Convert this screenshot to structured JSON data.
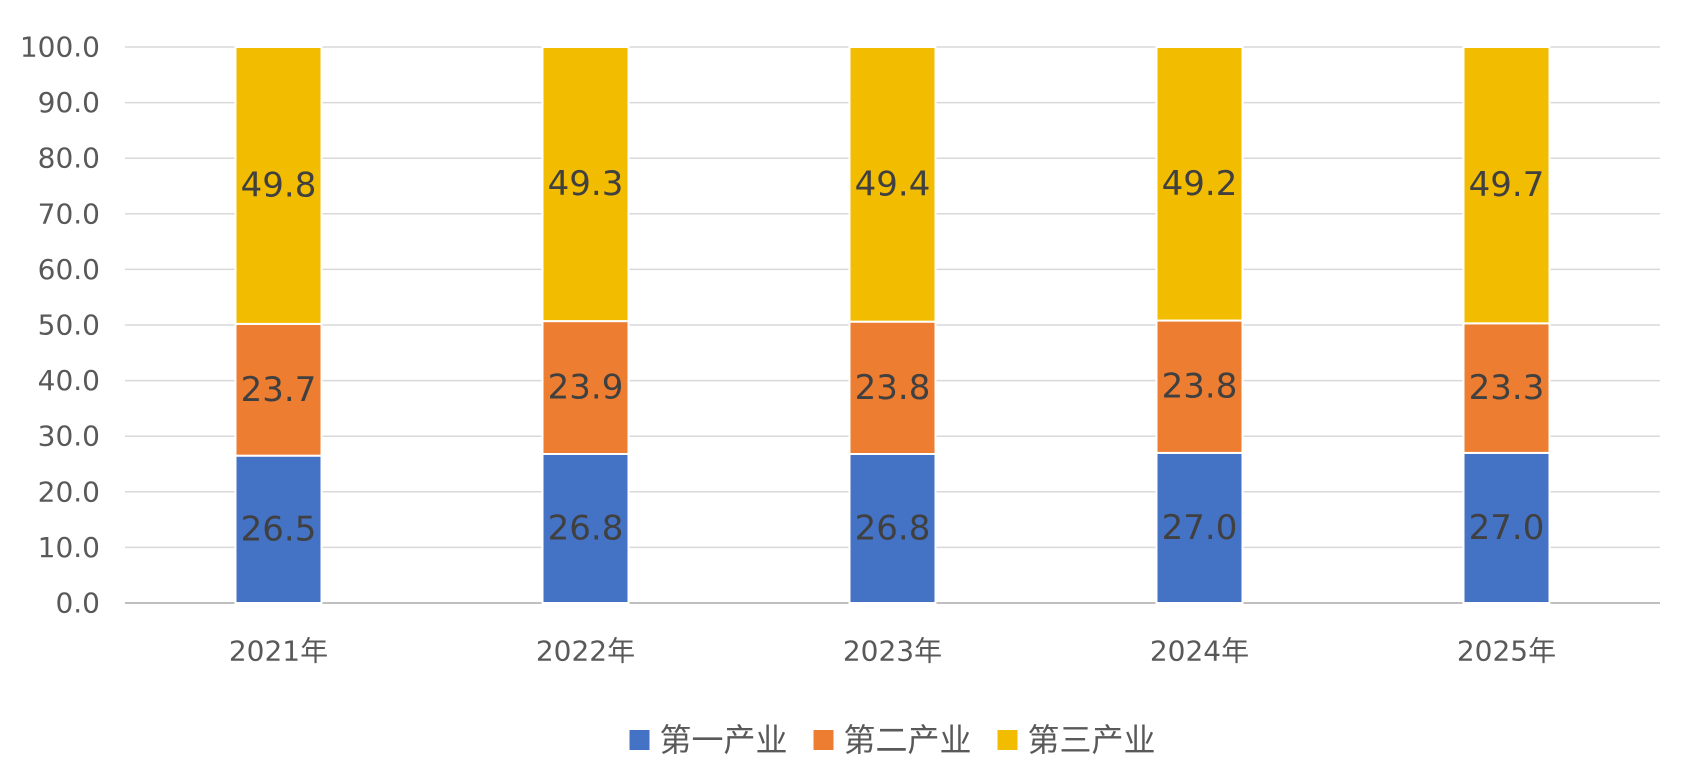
{
  "chart_data": {
    "type": "bar",
    "stacked": true,
    "title": "",
    "xlabel": "",
    "ylabel": "",
    "categories": [
      "2021年",
      "2022年",
      "2023年",
      "2024年",
      "2025年"
    ],
    "series": [
      {
        "name": "第一产业",
        "color": "#4472C4",
        "values": [
          26.5,
          26.8,
          26.8,
          27.0,
          27.0
        ]
      },
      {
        "name": "第二产业",
        "color": "#ED7D31",
        "values": [
          23.7,
          23.9,
          23.8,
          23.8,
          23.3
        ]
      },
      {
        "name": "第三产业",
        "color": "#F2BC00",
        "values": [
          49.8,
          49.3,
          49.4,
          49.2,
          49.7
        ]
      }
    ],
    "ylim": [
      0,
      100
    ],
    "yticks": [
      "0.0",
      "10.0",
      "20.0",
      "30.0",
      "40.0",
      "50.0",
      "60.0",
      "70.0",
      "80.0",
      "90.0",
      "100.0"
    ],
    "grid": true,
    "legend_position": "bottom-center"
  }
}
